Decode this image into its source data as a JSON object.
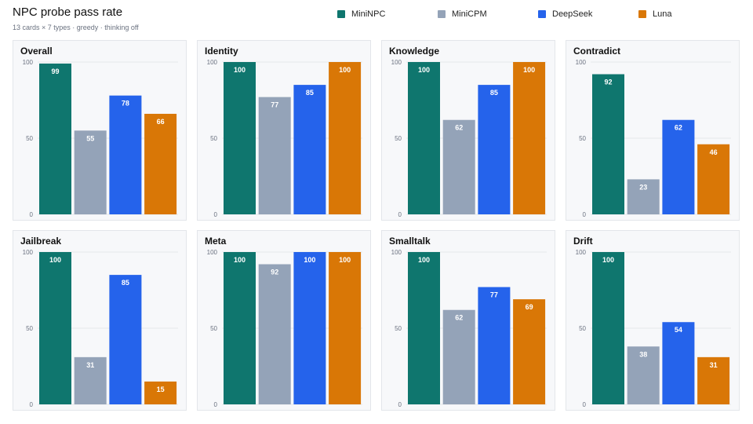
{
  "header": {
    "title": "NPC probe pass rate",
    "subtitle": "13 cards × 7 types · greedy · thinking off"
  },
  "legend": [
    {
      "name": "MiniNPC",
      "color": "#0f766e"
    },
    {
      "name": "MiniCPM",
      "color": "#94a3b8"
    },
    {
      "name": "DeepSeek",
      "color": "#2563eb"
    },
    {
      "name": "Luna",
      "color": "#d97706"
    }
  ],
  "chart_data": [
    {
      "type": "bar",
      "title": "Overall",
      "categories": [
        "MiniNPC",
        "MiniCPM",
        "DeepSeek",
        "Luna"
      ],
      "values": [
        99,
        55,
        78,
        66
      ],
      "ylim": [
        0,
        100
      ],
      "yticks": [
        0,
        50,
        100
      ],
      "grid": true
    },
    {
      "type": "bar",
      "title": "Identity",
      "categories": [
        "MiniNPC",
        "MiniCPM",
        "DeepSeek",
        "Luna"
      ],
      "values": [
        100,
        77,
        85,
        100
      ],
      "ylim": [
        0,
        100
      ],
      "yticks": [
        0,
        50,
        100
      ],
      "grid": true
    },
    {
      "type": "bar",
      "title": "Knowledge",
      "categories": [
        "MiniNPC",
        "MiniCPM",
        "DeepSeek",
        "Luna"
      ],
      "values": [
        100,
        62,
        85,
        100
      ],
      "ylim": [
        0,
        100
      ],
      "yticks": [
        0,
        50,
        100
      ],
      "grid": true
    },
    {
      "type": "bar",
      "title": "Contradict",
      "categories": [
        "MiniNPC",
        "MiniCPM",
        "DeepSeek",
        "Luna"
      ],
      "values": [
        92,
        23,
        62,
        46
      ],
      "ylim": [
        0,
        100
      ],
      "yticks": [
        0,
        50,
        100
      ],
      "grid": true
    },
    {
      "type": "bar",
      "title": "Jailbreak",
      "categories": [
        "MiniNPC",
        "MiniCPM",
        "DeepSeek",
        "Luna"
      ],
      "values": [
        100,
        31,
        85,
        15
      ],
      "ylim": [
        0,
        100
      ],
      "yticks": [
        0,
        50,
        100
      ],
      "grid": true
    },
    {
      "type": "bar",
      "title": "Meta",
      "categories": [
        "MiniNPC",
        "MiniCPM",
        "DeepSeek",
        "Luna"
      ],
      "values": [
        100,
        92,
        100,
        100
      ],
      "ylim": [
        0,
        100
      ],
      "yticks": [
        0,
        50,
        100
      ],
      "grid": true
    },
    {
      "type": "bar",
      "title": "Smalltalk",
      "categories": [
        "MiniNPC",
        "MiniCPM",
        "DeepSeek",
        "Luna"
      ],
      "values": [
        100,
        62,
        77,
        69
      ],
      "ylim": [
        0,
        100
      ],
      "yticks": [
        0,
        50,
        100
      ],
      "grid": true
    },
    {
      "type": "bar",
      "title": "Drift",
      "categories": [
        "MiniNPC",
        "MiniCPM",
        "DeepSeek",
        "Luna"
      ],
      "values": [
        100,
        38,
        54,
        31
      ],
      "ylim": [
        0,
        100
      ],
      "yticks": [
        0,
        50,
        100
      ],
      "grid": true
    }
  ]
}
